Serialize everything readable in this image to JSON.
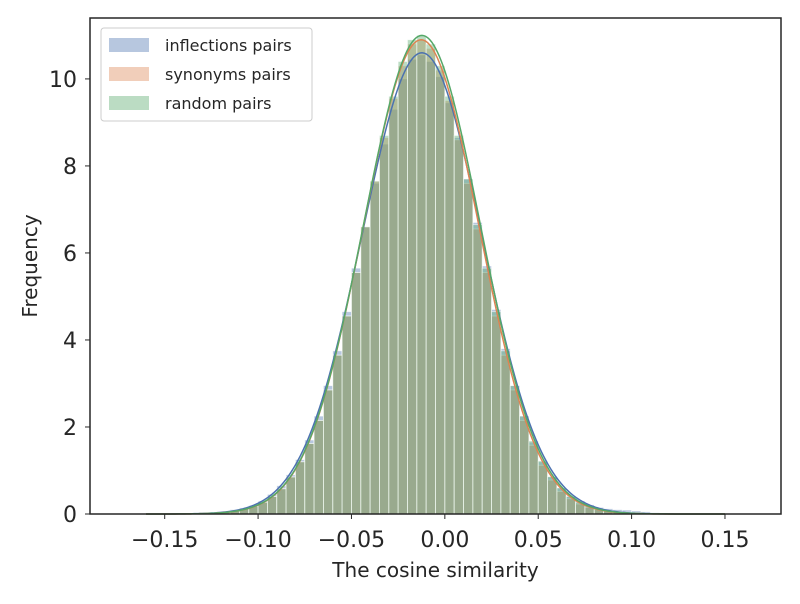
{
  "chart_data": {
    "type": "histogram",
    "title": "",
    "xlabel": "The cosine similarity",
    "ylabel": "Frequency",
    "xlim": [
      -0.19,
      0.18
    ],
    "ylim": [
      0,
      11.4
    ],
    "grid": false,
    "legend_position": "top-left",
    "x_ticks": [
      -0.15,
      -0.1,
      -0.05,
      0.0,
      0.05,
      0.1,
      0.15
    ],
    "x_tick_labels": [
      "−0.15",
      "−0.10",
      "−0.05",
      "0.00",
      "0.05",
      "0.10",
      "0.15"
    ],
    "y_ticks": [
      0,
      2,
      4,
      6,
      8,
      10
    ],
    "y_tick_labels": [
      "0",
      "2",
      "4",
      "6",
      "8",
      "10"
    ],
    "bin_width": 0.005,
    "series": [
      {
        "name": "inflections pairs",
        "color": "#4c72b0",
        "bin_start": -0.13,
        "bin_values": [
          0.02,
          0.04,
          0.06,
          0.1,
          0.14,
          0.2,
          0.3,
          0.45,
          0.65,
          0.9,
          1.25,
          1.7,
          2.25,
          2.95,
          3.75,
          4.65,
          5.65,
          6.6,
          7.6,
          8.5,
          9.3,
          10.0,
          10.45,
          10.55,
          10.4,
          10.05,
          9.45,
          8.65,
          7.7,
          6.7,
          5.7,
          4.7,
          3.8,
          2.95,
          2.25,
          1.65,
          1.2,
          0.85,
          0.6,
          0.42,
          0.3,
          0.21,
          0.15,
          0.12,
          0.1,
          0.09,
          0.07,
          0.05,
          0.03,
          0.02,
          0.01,
          0.01
        ],
        "kde_peak": 10.6
      },
      {
        "name": "synonyms pairs",
        "color": "#dd8452",
        "bin_start": -0.13,
        "bin_values": [
          0.02,
          0.03,
          0.05,
          0.08,
          0.12,
          0.18,
          0.27,
          0.4,
          0.58,
          0.85,
          1.2,
          1.62,
          2.15,
          2.85,
          3.65,
          4.55,
          5.55,
          6.6,
          7.65,
          8.65,
          9.55,
          10.3,
          10.8,
          10.9,
          10.7,
          10.2,
          9.5,
          8.6,
          7.6,
          6.55,
          5.55,
          4.55,
          3.65,
          2.85,
          2.15,
          1.58,
          1.12,
          0.78,
          0.52,
          0.35,
          0.23,
          0.15,
          0.1,
          0.07,
          0.05,
          0.04,
          0.03,
          0.02,
          0.01,
          0.01,
          0.01,
          0.0
        ],
        "kde_peak": 10.9
      },
      {
        "name": "random pairs",
        "color": "#55a868",
        "bin_start": -0.13,
        "bin_values": [
          0.02,
          0.03,
          0.05,
          0.08,
          0.12,
          0.18,
          0.27,
          0.4,
          0.58,
          0.85,
          1.2,
          1.62,
          2.15,
          2.85,
          3.65,
          4.55,
          5.55,
          6.6,
          7.65,
          8.7,
          9.6,
          10.4,
          10.9,
          11.0,
          10.8,
          10.3,
          9.6,
          8.7,
          7.7,
          6.65,
          5.65,
          4.65,
          3.75,
          2.95,
          2.25,
          1.68,
          1.22,
          0.86,
          0.6,
          0.4,
          0.27,
          0.18,
          0.12,
          0.08,
          0.06,
          0.04,
          0.03,
          0.02,
          0.01,
          0.01,
          0.01,
          0.0
        ],
        "kde_peak": 11.0
      }
    ]
  }
}
